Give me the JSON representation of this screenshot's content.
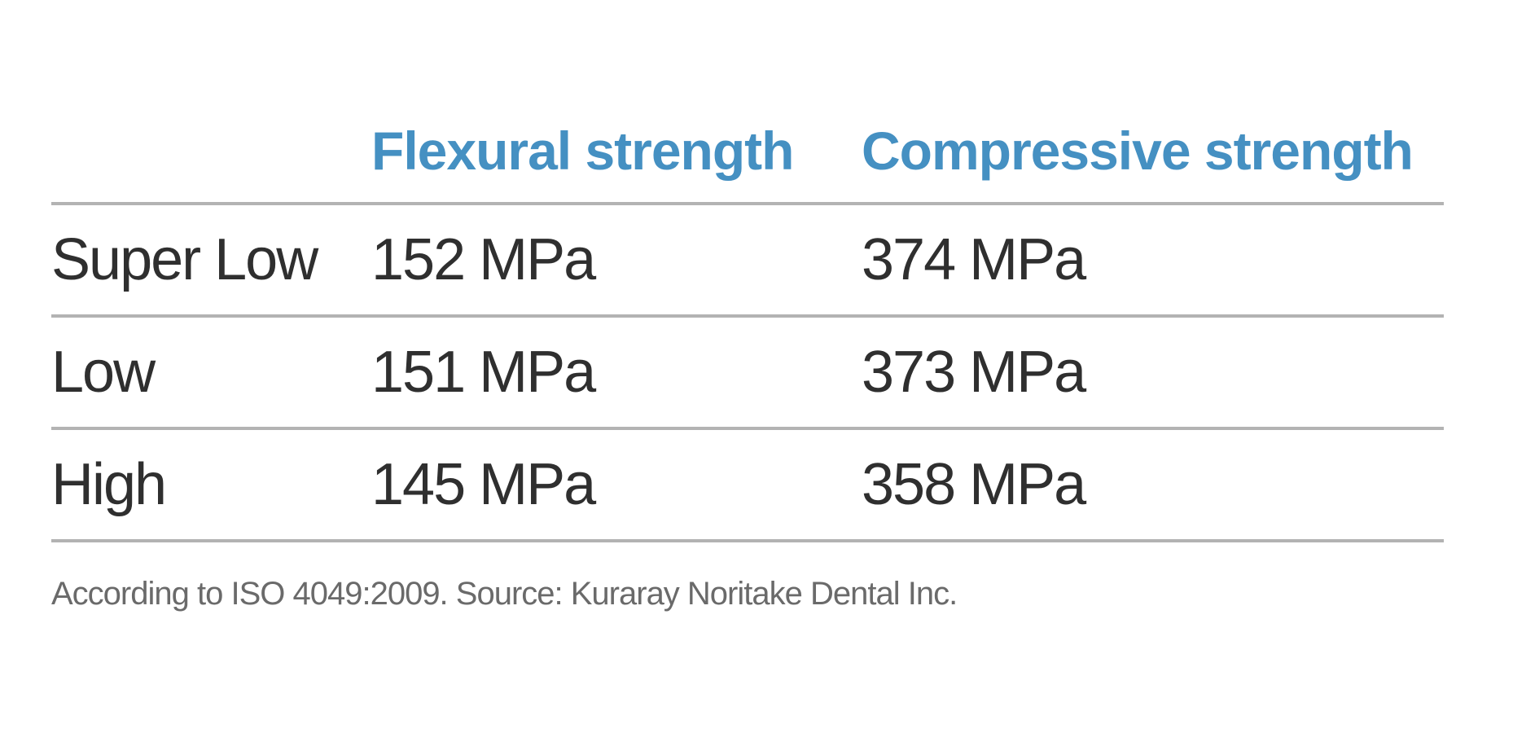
{
  "chart_data": {
    "type": "table",
    "columns": [
      "",
      "Flexural strength",
      "Compressive strength"
    ],
    "rows": [
      {
        "label": "Super Low",
        "flexural": "152 MPa",
        "compressive": "374 MPa"
      },
      {
        "label": "Low",
        "flexural": "151 MPa",
        "compressive": "373 MPa"
      },
      {
        "label": "High",
        "flexural": "145 MPa",
        "compressive": "358 MPa"
      }
    ],
    "footnote": "According to ISO 4049:2009. Source: Kuraray Noritake Dental Inc."
  },
  "colors": {
    "header_text": "#4590c2",
    "body_text": "#2f2f2f",
    "footnote_text": "#6a6a6a",
    "rule": "#b3b3b3"
  }
}
